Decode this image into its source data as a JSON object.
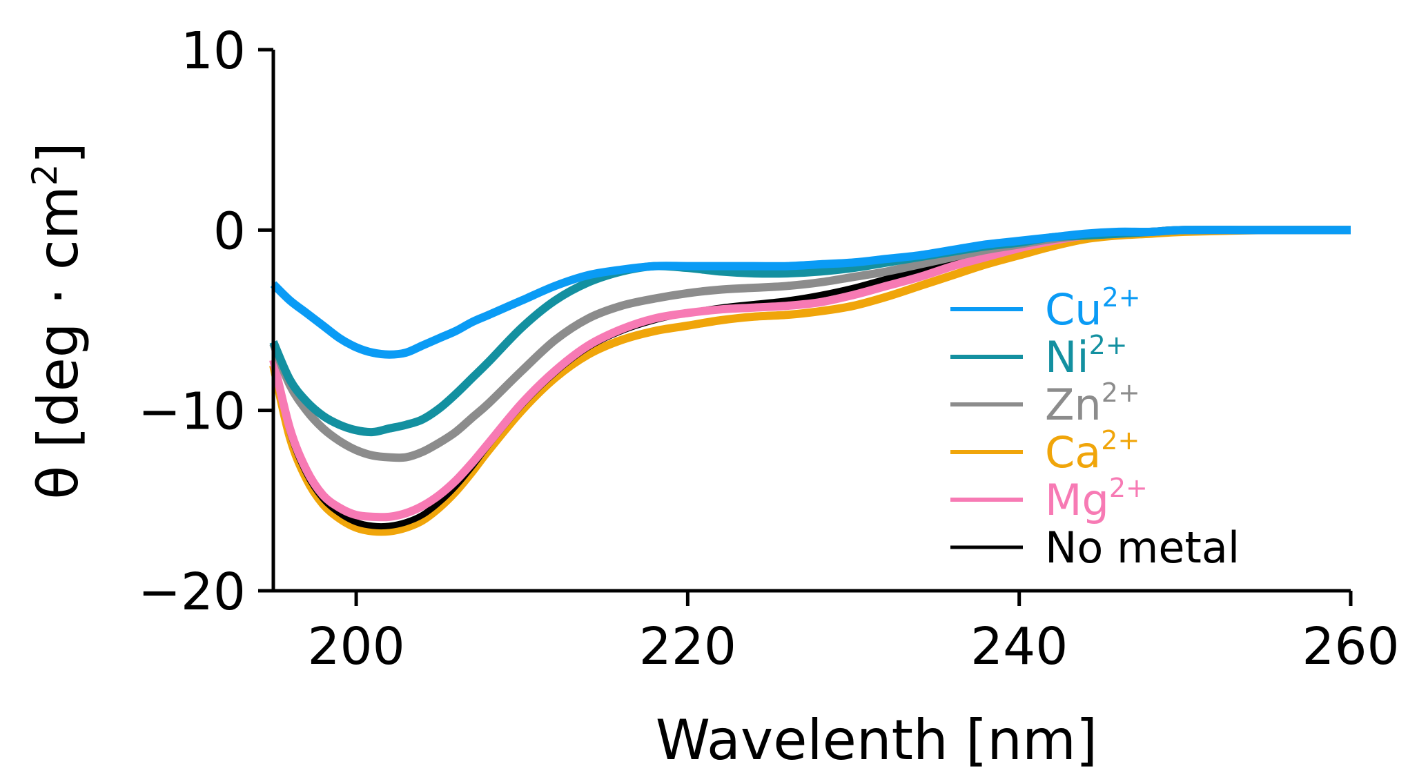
{
  "chart_data": {
    "type": "line",
    "title": "",
    "xlabel": "Wavelenth [nm]",
    "ylabel": "θ [deg · cm²]",
    "ylabel_main": "θ [deg · cm",
    "ylabel_sup": "2",
    "ylabel_end": "]",
    "xlim": [
      195,
      260
    ],
    "ylim": [
      -20,
      10
    ],
    "xticks": [
      200,
      220,
      240,
      260
    ],
    "yticks": [
      10,
      0,
      -10,
      -20
    ],
    "xtick_labels": [
      "200",
      "220",
      "240",
      "260"
    ],
    "ytick_labels": [
      "10",
      "0",
      "−10",
      "−20"
    ],
    "grid": false,
    "legend_position": "center-right",
    "series": [
      {
        "name": "Ca",
        "sup": "2+",
        "color": "#F0A50A",
        "x": [
          195,
          196,
          197,
          198,
          199,
          200,
          201,
          202,
          203,
          204,
          205,
          206,
          207,
          208,
          210,
          212,
          214,
          216,
          218,
          220,
          222,
          224,
          226,
          228,
          230,
          232,
          234,
          236,
          238,
          240,
          242,
          244,
          246,
          248,
          250,
          255,
          260
        ],
        "y": [
          -7.5,
          -11.5,
          -13.8,
          -15.2,
          -16.0,
          -16.5,
          -16.7,
          -16.7,
          -16.5,
          -16.1,
          -15.4,
          -14.5,
          -13.4,
          -12.2,
          -10.0,
          -8.2,
          -6.9,
          -6.1,
          -5.6,
          -5.3,
          -5.0,
          -4.8,
          -4.7,
          -4.5,
          -4.2,
          -3.7,
          -3.1,
          -2.5,
          -1.9,
          -1.4,
          -0.9,
          -0.5,
          -0.3,
          -0.2,
          -0.1,
          0.0,
          0.0
        ]
      },
      {
        "name": "No metal",
        "sup": "",
        "color": "#000000",
        "x": [
          195,
          196,
          197,
          198,
          199,
          200,
          201,
          202,
          203,
          204,
          205,
          206,
          207,
          208,
          210,
          212,
          214,
          216,
          218,
          220,
          222,
          224,
          226,
          228,
          230,
          232,
          234,
          236,
          238,
          240,
          242,
          244,
          246,
          248,
          250,
          255,
          260
        ],
        "y": [
          -7.3,
          -11.2,
          -13.5,
          -14.9,
          -15.7,
          -16.2,
          -16.4,
          -16.4,
          -16.2,
          -15.8,
          -15.1,
          -14.2,
          -13.1,
          -11.9,
          -9.7,
          -7.9,
          -6.5,
          -5.6,
          -5.0,
          -4.6,
          -4.3,
          -4.1,
          -3.9,
          -3.6,
          -3.2,
          -2.7,
          -2.2,
          -1.7,
          -1.3,
          -0.9,
          -0.5,
          -0.3,
          -0.2,
          -0.1,
          0.0,
          0.0,
          0.0
        ]
      },
      {
        "name": "Mg",
        "sup": "2+",
        "color": "#F77AB4",
        "x": [
          195,
          196,
          197,
          198,
          199,
          200,
          201,
          202,
          203,
          204,
          205,
          206,
          207,
          208,
          210,
          212,
          214,
          216,
          218,
          220,
          222,
          224,
          226,
          228,
          230,
          232,
          234,
          236,
          238,
          240,
          242,
          244,
          246,
          248,
          250,
          255,
          260
        ],
        "y": [
          -7.2,
          -11.0,
          -13.3,
          -14.7,
          -15.4,
          -15.8,
          -15.9,
          -15.9,
          -15.7,
          -15.3,
          -14.7,
          -13.9,
          -12.9,
          -11.8,
          -9.6,
          -7.8,
          -6.4,
          -5.5,
          -4.9,
          -4.6,
          -4.4,
          -4.3,
          -4.2,
          -4.0,
          -3.6,
          -3.1,
          -2.6,
          -2.0,
          -1.5,
          -1.0,
          -0.6,
          -0.3,
          -0.2,
          -0.1,
          0.0,
          0.0,
          0.0
        ]
      },
      {
        "name": "Zn",
        "sup": "2+",
        "color": "#8C8C8C",
        "x": [
          195,
          196,
          197,
          198,
          199,
          200,
          201,
          202,
          203,
          204,
          205,
          206,
          207,
          208,
          210,
          212,
          214,
          216,
          218,
          220,
          222,
          224,
          226,
          228,
          230,
          232,
          234,
          236,
          238,
          240,
          242,
          244,
          246,
          248,
          250,
          255,
          260
        ],
        "y": [
          -6.3,
          -8.6,
          -10.0,
          -11.0,
          -11.7,
          -12.2,
          -12.5,
          -12.6,
          -12.6,
          -12.3,
          -11.8,
          -11.2,
          -10.4,
          -9.6,
          -7.8,
          -6.1,
          -4.9,
          -4.2,
          -3.8,
          -3.5,
          -3.3,
          -3.2,
          -3.1,
          -2.9,
          -2.6,
          -2.3,
          -1.9,
          -1.5,
          -1.1,
          -0.8,
          -0.5,
          -0.3,
          -0.2,
          -0.1,
          0.0,
          0.0,
          0.0
        ]
      },
      {
        "name": "Ni",
        "sup": "2+",
        "color": "#1390A0",
        "x": [
          195,
          196,
          197,
          198,
          199,
          200,
          201,
          202,
          203,
          204,
          205,
          206,
          207,
          208,
          210,
          212,
          214,
          216,
          218,
          220,
          222,
          224,
          226,
          228,
          230,
          232,
          234,
          236,
          238,
          240,
          242,
          244,
          246,
          248,
          250,
          255,
          260
        ],
        "y": [
          -6.2,
          -8.3,
          -9.5,
          -10.3,
          -10.8,
          -11.1,
          -11.2,
          -11.0,
          -10.8,
          -10.5,
          -9.9,
          -9.1,
          -8.2,
          -7.3,
          -5.4,
          -3.9,
          -2.9,
          -2.3,
          -2.0,
          -2.1,
          -2.3,
          -2.4,
          -2.4,
          -2.3,
          -2.1,
          -1.8,
          -1.5,
          -1.2,
          -0.9,
          -0.7,
          -0.4,
          -0.3,
          -0.2,
          -0.1,
          0.0,
          0.0,
          0.0
        ]
      },
      {
        "name": "Cu",
        "sup": "2+",
        "color": "#0A9BF5",
        "x": [
          195,
          196,
          197,
          198,
          199,
          200,
          201,
          202,
          203,
          204,
          205,
          206,
          207,
          208,
          210,
          212,
          214,
          216,
          218,
          220,
          222,
          224,
          226,
          228,
          230,
          232,
          234,
          236,
          238,
          240,
          242,
          244,
          246,
          248,
          250,
          255,
          260
        ],
        "y": [
          -3.0,
          -3.9,
          -4.6,
          -5.3,
          -6.0,
          -6.5,
          -6.8,
          -6.9,
          -6.8,
          -6.4,
          -6.0,
          -5.6,
          -5.1,
          -4.7,
          -3.9,
          -3.1,
          -2.5,
          -2.2,
          -2.0,
          -2.0,
          -2.0,
          -2.0,
          -2.0,
          -1.9,
          -1.8,
          -1.6,
          -1.4,
          -1.1,
          -0.8,
          -0.6,
          -0.4,
          -0.2,
          -0.1,
          -0.1,
          0.0,
          0.0,
          0.0
        ]
      }
    ],
    "legend": [
      {
        "name": "Cu",
        "sup": "2+",
        "color": "#0A9BF5"
      },
      {
        "name": "Ni",
        "sup": "2+",
        "color": "#1390A0"
      },
      {
        "name": "Zn",
        "sup": "2+",
        "color": "#8C8C8C"
      },
      {
        "name": "Ca",
        "sup": "2+",
        "color": "#F0A50A"
      },
      {
        "name": "Mg",
        "sup": "2+",
        "color": "#F77AB4"
      },
      {
        "name": "No metal",
        "sup": "",
        "color": "#000000"
      }
    ]
  }
}
